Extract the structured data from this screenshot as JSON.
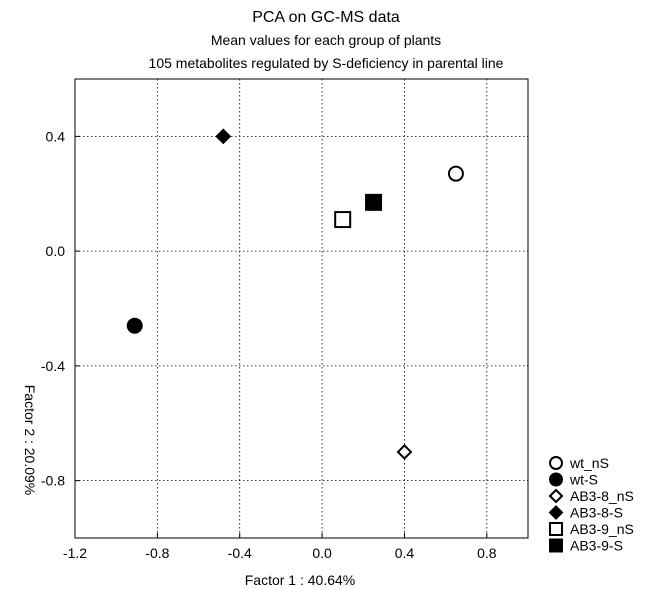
{
  "chart_data": {
    "type": "scatter",
    "title": "PCA on GC-MS data",
    "subtitle_lines": [
      "Mean values for each group of plants",
      "105 metabolites regulated by S-deficiency in parental line"
    ],
    "xlabel": "Factor 1 : 40.64%",
    "ylabel": "Factor 2 : 20.09%",
    "xlim": [
      -1.2,
      1.0
    ],
    "ylim": [
      -1.0,
      0.6
    ],
    "x_ticks": [
      -1.2,
      -0.8,
      -0.4,
      0.0,
      0.4,
      0.8
    ],
    "x_tick_labels": [
      "-1.2",
      "-0.8",
      "-0.4",
      "0.0",
      "0.4",
      "0.8"
    ],
    "y_ticks": [
      0.4,
      0.0,
      -0.4,
      -0.8
    ],
    "y_tick_labels": [
      "0.4",
      "0.0",
      "-0.4",
      "-0.8"
    ],
    "grid": true,
    "grid_style": "dotted",
    "legend_position": "bottom-right outside",
    "series": [
      {
        "name": "wt_nS",
        "marker": "circle",
        "filled": false,
        "x": 0.65,
        "y": 0.27
      },
      {
        "name": "wt-S",
        "marker": "circle",
        "filled": true,
        "x": -0.91,
        "y": -0.26
      },
      {
        "name": "AB3-8_nS",
        "marker": "diamond",
        "filled": false,
        "x": 0.4,
        "y": -0.7
      },
      {
        "name": "AB3-8-S",
        "marker": "diamond",
        "filled": true,
        "x": -0.48,
        "y": 0.4
      },
      {
        "name": "AB3-9_nS",
        "marker": "square",
        "filled": false,
        "x": 0.1,
        "y": 0.11
      },
      {
        "name": "AB3-9-S",
        "marker": "square",
        "filled": true,
        "x": 0.25,
        "y": 0.17
      }
    ],
    "colors": {
      "marker": "#000000",
      "open_fill": "#ffffff",
      "axis": "#000000",
      "grid": "#000000"
    }
  }
}
